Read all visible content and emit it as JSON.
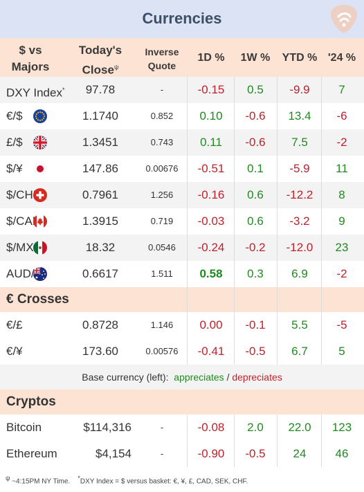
{
  "title": "Currencies",
  "logo_icon": "guitar-pick-icon",
  "header": {
    "col1": [
      "$ vs",
      "Majors"
    ],
    "col2": [
      "Today's",
      "Close"
    ],
    "col2_mark": "ψ",
    "col3": [
      "Inverse",
      "Quote"
    ],
    "col4": "1D %",
    "col5": "1W %",
    "col6": "YTD %",
    "col7": "'24 %"
  },
  "majors": [
    {
      "name": "DXY Index",
      "mark": "*",
      "flag": "",
      "close": "97.78",
      "inverse": "-",
      "d1": "-0.15",
      "w1": "0.5",
      "ytd": "-9.9",
      "y24": "7"
    },
    {
      "name": "€/$",
      "flag": "eu-flag-icon",
      "close": "1.1740",
      "inverse": "0.852",
      "d1": "0.10",
      "w1": "-0.6",
      "ytd": "13.4",
      "y24": "-6"
    },
    {
      "name": "£/$",
      "flag": "uk-flag-icon",
      "close": "1.3451",
      "inverse": "0.743",
      "d1": "0.11",
      "w1": "-0.6",
      "ytd": "7.5",
      "y24": "-2"
    },
    {
      "name": "$/¥",
      "flag": "japan-flag-icon",
      "close": "147.86",
      "inverse": "0.00676",
      "d1": "-0.51",
      "w1": "0.1",
      "ytd": "-5.9",
      "y24": "11"
    },
    {
      "name": "$/CHF",
      "flag": "swiss-flag-icon",
      "close": "0.7961",
      "inverse": "1.256",
      "d1": "-0.16",
      "w1": "0.6",
      "ytd": "-12.2",
      "y24": "8"
    },
    {
      "name": "$/CAD",
      "flag": "canada-flag-icon",
      "close": "1.3915",
      "inverse": "0.719",
      "d1": "-0.03",
      "w1": "0.6",
      "ytd": "-3.2",
      "y24": "9"
    },
    {
      "name": "$/MXN",
      "flag": "mexico-flag-icon",
      "close": "18.32",
      "inverse": "0.0546",
      "d1": "-0.24",
      "w1": "-0.2",
      "ytd": "-12.0",
      "y24": "23"
    },
    {
      "name": "AUD/$",
      "flag": "australia-flag-icon",
      "close": "0.6617",
      "inverse": "1.511",
      "d1": "0.58",
      "w1": "0.3",
      "ytd": "6.9",
      "y24": "-2",
      "d1_bold": true
    }
  ],
  "crosses_title": "€ Crosses",
  "crosses": [
    {
      "name": "€/£",
      "close": "0.8728",
      "inverse": "1.146",
      "d1": "0.00",
      "w1": "-0.1",
      "ytd": "5.5",
      "y24": "-5",
      "d1_color": "neg"
    },
    {
      "name": "€/¥",
      "close": "173.60",
      "inverse": "0.00576",
      "d1": "-0.41",
      "w1": "-0.5",
      "ytd": "6.7",
      "y24": "5"
    }
  ],
  "legend": {
    "prefix": "Base currency (left):",
    "up": "appreciates",
    "sep": "/",
    "down": "depreciates"
  },
  "cryptos_title": "Cryptos",
  "cryptos": [
    {
      "name": "Bitcoin",
      "close": "$114,316",
      "inverse": "-",
      "d1": "-0.08",
      "w1": "2.0",
      "ytd": "22.0",
      "y24": "123"
    },
    {
      "name": "Ethereum",
      "close": "$4,154",
      "inverse": "-",
      "d1": "-0.90",
      "w1": "-0.5",
      "ytd": "24",
      "y24": "46"
    }
  ],
  "footnote": {
    "mark1": "ψ",
    "text1": " ~4:15PM NY Time.",
    "mark2": "*",
    "text2": "DXY Index = $ versus basket: €, ¥, £, CAD, SEK, CHF."
  },
  "colors": {
    "positive": "#1f8a1f",
    "negative": "#c0202a",
    "header_bg": "#fde3d3",
    "title_bg": "#dbe3f4"
  }
}
